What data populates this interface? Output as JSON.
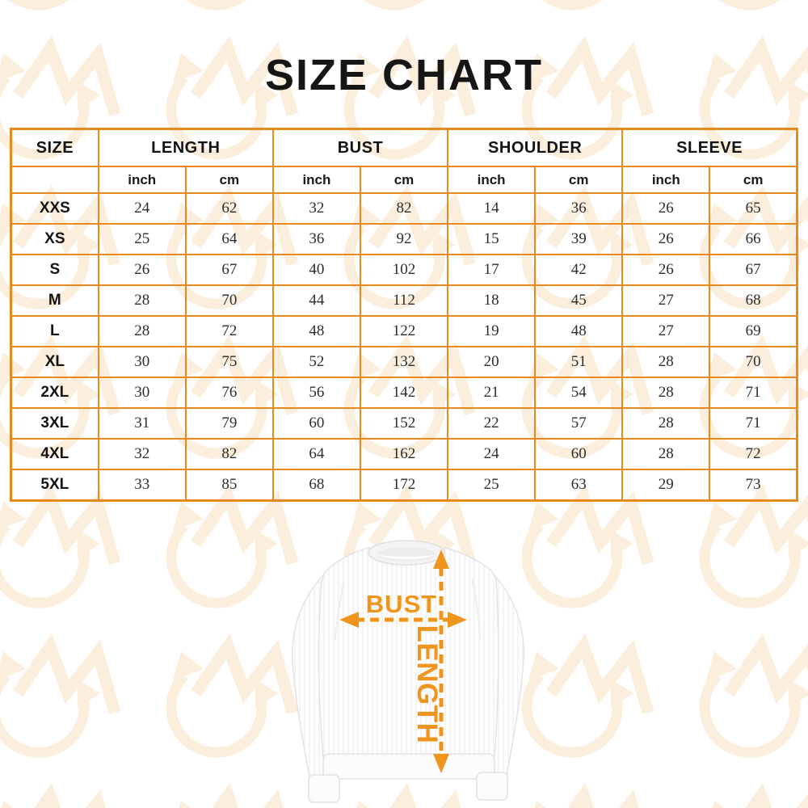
{
  "title": "SIZE CHART",
  "colors": {
    "table_border": "#E8891D",
    "accent_orange": "#EF941D",
    "watermark": "#FBEEDC",
    "title_text": "#161616"
  },
  "table": {
    "groups": [
      {
        "label": "SIZE"
      },
      {
        "label": "LENGTH"
      },
      {
        "label": "BUST"
      },
      {
        "label": "SHOULDER"
      },
      {
        "label": "SLEEVE"
      }
    ],
    "unit_headers": [
      "inch",
      "cm",
      "inch",
      "cm",
      "inch",
      "cm",
      "inch",
      "cm"
    ],
    "rows": [
      {
        "size": "XXS",
        "values": [
          24,
          62,
          32,
          82,
          14,
          36,
          26,
          65
        ]
      },
      {
        "size": "XS",
        "values": [
          25,
          64,
          36,
          92,
          15,
          39,
          26,
          66
        ]
      },
      {
        "size": "S",
        "values": [
          26,
          67,
          40,
          102,
          17,
          42,
          26,
          67
        ]
      },
      {
        "size": "M",
        "values": [
          28,
          70,
          44,
          112,
          18,
          45,
          27,
          68
        ]
      },
      {
        "size": "L",
        "values": [
          28,
          72,
          48,
          122,
          19,
          48,
          27,
          69
        ]
      },
      {
        "size": "XL",
        "values": [
          30,
          75,
          52,
          132,
          20,
          51,
          28,
          70
        ]
      },
      {
        "size": "2XL",
        "values": [
          30,
          76,
          56,
          142,
          21,
          54,
          28,
          71
        ]
      },
      {
        "size": "3XL",
        "values": [
          31,
          79,
          60,
          152,
          22,
          57,
          28,
          71
        ]
      },
      {
        "size": "4XL",
        "values": [
          32,
          82,
          64,
          162,
          24,
          60,
          28,
          72
        ]
      },
      {
        "size": "5XL",
        "values": [
          33,
          85,
          68,
          172,
          25,
          63,
          29,
          73
        ]
      }
    ]
  },
  "diagram": {
    "bust_label": "BUST",
    "length_label": "LENGTH"
  },
  "chart_data": {
    "type": "table",
    "title": "SIZE CHART",
    "columns": [
      "SIZE",
      "LENGTH (inch)",
      "LENGTH (cm)",
      "BUST (inch)",
      "BUST (cm)",
      "SHOULDER (inch)",
      "SHOULDER (cm)",
      "SLEEVE (inch)",
      "SLEEVE (cm)"
    ],
    "rows": [
      [
        "XXS",
        24,
        62,
        32,
        82,
        14,
        36,
        26,
        65
      ],
      [
        "XS",
        25,
        64,
        36,
        92,
        15,
        39,
        26,
        66
      ],
      [
        "S",
        26,
        67,
        40,
        102,
        17,
        42,
        26,
        67
      ],
      [
        "M",
        28,
        70,
        44,
        112,
        18,
        45,
        27,
        68
      ],
      [
        "L",
        28,
        72,
        48,
        122,
        19,
        48,
        27,
        69
      ],
      [
        "XL",
        30,
        75,
        52,
        132,
        20,
        51,
        28,
        70
      ],
      [
        "2XL",
        30,
        76,
        56,
        142,
        21,
        54,
        28,
        71
      ],
      [
        "3XL",
        31,
        79,
        60,
        152,
        22,
        57,
        28,
        71
      ],
      [
        "4XL",
        32,
        82,
        64,
        162,
        24,
        60,
        28,
        72
      ],
      [
        "5XL",
        33,
        85,
        68,
        172,
        25,
        63,
        29,
        73
      ]
    ]
  }
}
